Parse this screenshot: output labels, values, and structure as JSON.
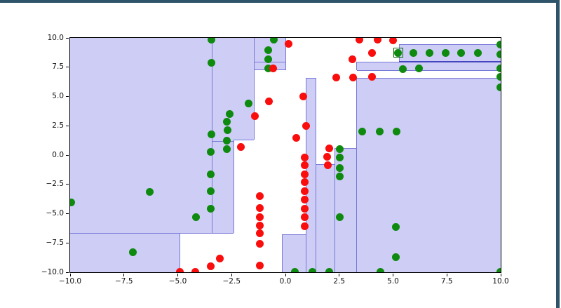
{
  "window": {
    "frame_color": "#2d5469"
  },
  "chart_data": {
    "type": "scatter",
    "title": "",
    "xlabel": "",
    "ylabel": "",
    "xlim": [
      -10,
      10
    ],
    "ylim": [
      -10,
      10
    ],
    "grid": false,
    "legend": null,
    "x_ticks": {
      "values": [
        -10,
        -7.5,
        -5,
        -2.5,
        0,
        2.5,
        5,
        7.5,
        10
      ],
      "labels": [
        "−10.0",
        "−7.5",
        "−5.0",
        "−2.5",
        "0.0",
        "2.5",
        "5.0",
        "7.5",
        "10.0"
      ]
    },
    "y_ticks": {
      "values": [
        10,
        7.5,
        5,
        2.5,
        0,
        -2.5,
        -5,
        -7.5,
        -10
      ],
      "labels": [
        "10.0",
        "7.5",
        "5.0",
        "2.5",
        "0.0",
        "−2.5",
        "−5.0",
        "−7.5",
        "−10.0"
      ]
    },
    "colors": {
      "region_fill": "#cdcdf5",
      "region_edge": "#7878d8",
      "region_edge_strong": "#4545c0",
      "green": "#0e8a0e",
      "red": "#f90d0d",
      "highlight_box": "#066606",
      "spine": "#000000"
    },
    "regions": [
      {
        "x1": -10,
        "x2": -2.4,
        "y1": 10,
        "y2": -6.66
      },
      {
        "x1": -2.4,
        "x2": -1.45,
        "y1": 10,
        "y2": 1.31
      },
      {
        "x1": -10,
        "x2": -4.9,
        "y1": -6.66,
        "y2": -10
      },
      {
        "x1": -1.45,
        "x2": 0.03,
        "y1": 10,
        "y2": 7.27
      },
      {
        "x1": 0.97,
        "x2": 1.42,
        "y1": 6.56,
        "y2": -10
      },
      {
        "x1": 1.42,
        "x2": 2.31,
        "y1": -0.83,
        "y2": -10
      },
      {
        "x1": 2.31,
        "x2": 3.29,
        "y1": 0.59,
        "y2": -10
      },
      {
        "x1": -0.15,
        "x2": 0.97,
        "y1": -6.82,
        "y2": -10
      },
      {
        "x1": 5.28,
        "x2": 10,
        "y1": 9.45,
        "y2": 7.98
      },
      {
        "x1": 3.32,
        "x2": 10,
        "y1": 7.95,
        "y2": 7.22
      },
      {
        "x1": 3.29,
        "x2": 10,
        "y1": 6.56,
        "y2": -10
      }
    ],
    "boundary_lines": {
      "v": [
        {
          "x": -3.4,
          "y1": 10,
          "y2": -6.66
        },
        {
          "x": -1.45,
          "y1": 10,
          "y2": 1.31
        },
        {
          "x": -2.4,
          "y1": 1.31,
          "y2": -6.66
        },
        {
          "x": 0.03,
          "y1": 10,
          "y2": 7.27
        },
        {
          "x": 0.97,
          "y1": 6.56,
          "y2": -10
        },
        {
          "x": 1.42,
          "y1": 6.56,
          "y2": -10
        },
        {
          "x": 2.31,
          "y1": 0.59,
          "y2": -10
        },
        {
          "x": 3.29,
          "y1": 6.56,
          "y2": -10
        },
        {
          "x": -0.15,
          "y1": -6.82,
          "y2": -10
        },
        {
          "x": -4.9,
          "y1": -6.66,
          "y2": -10
        },
        {
          "x": 5.28,
          "y1": 9.45,
          "y2": 7.98
        },
        {
          "x": 3.32,
          "y1": 7.95,
          "y2": 7.22
        }
      ],
      "h": [
        {
          "y": 1.31,
          "x1": -2.4,
          "x2": -1.45
        },
        {
          "y": 1.17,
          "x1": -3.4,
          "x2": -2.4
        },
        {
          "y": -6.66,
          "x1": -10,
          "x2": -2.4
        },
        {
          "y": -6.82,
          "x1": -0.15,
          "x2": 0.97
        },
        {
          "y": 7.27,
          "x1": -1.45,
          "x2": 0.03
        },
        {
          "y": 7.95,
          "x1": -1.45,
          "x2": 0.03
        },
        {
          "y": 9.45,
          "x1": 5.28,
          "x2": 10
        },
        {
          "y": 7.95,
          "x1": 3.32,
          "x2": 10
        },
        {
          "y": 7.22,
          "x1": 3.32,
          "x2": 10
        },
        {
          "y": 6.56,
          "x1": 0.97,
          "x2": 1.42
        },
        {
          "y": 6.56,
          "x1": 3.29,
          "x2": 10
        },
        {
          "y": 0.59,
          "x1": 2.31,
          "x2": 3.29
        },
        {
          "y": -0.83,
          "x1": 1.42,
          "x2": 2.31
        },
        {
          "y": 7.98,
          "x1": 5.28,
          "x2": 10,
          "strong": true
        }
      ]
    },
    "series": [
      {
        "name": "green",
        "color": "#0e8a0e",
        "points": [
          [
            -3.44,
            9.84
          ],
          [
            -3.44,
            7.85
          ],
          [
            -3.44,
            1.77
          ],
          [
            -3.47,
            0.27
          ],
          [
            -3.47,
            -1.62
          ],
          [
            -3.47,
            -3.11
          ],
          [
            -3.47,
            -4.57
          ],
          [
            -0.54,
            9.84
          ],
          [
            -0.8,
            8.98
          ],
          [
            -0.8,
            8.15
          ],
          [
            -0.8,
            7.41
          ],
          [
            -2.6,
            3.5
          ],
          [
            -2.71,
            2.83
          ],
          [
            -2.7,
            2.13
          ],
          [
            -2.71,
            1.21
          ],
          [
            -2.71,
            0.51
          ],
          [
            -1.7,
            4.4
          ],
          [
            -4.16,
            -5.31
          ],
          [
            -6.3,
            -3.17
          ],
          [
            -9.94,
            -4.07
          ],
          [
            -7.07,
            -8.3
          ],
          [
            2.51,
            0.48
          ],
          [
            2.51,
            -0.22
          ],
          [
            2.51,
            -1.08
          ],
          [
            2.51,
            -1.82
          ],
          [
            2.51,
            -5.31
          ],
          [
            3.56,
            2.01
          ],
          [
            4.38,
            2.01
          ],
          [
            5.16,
            2.01
          ],
          [
            5.13,
            -6.16
          ],
          [
            5.13,
            -8.7
          ],
          [
            0.44,
            -9.97
          ],
          [
            1.26,
            -9.97
          ],
          [
            2.04,
            -9.97
          ],
          [
            4.41,
            -9.97
          ],
          [
            9.99,
            -9.97
          ],
          [
            5.24,
            8.74
          ],
          [
            5.95,
            8.74
          ],
          [
            6.69,
            8.74
          ],
          [
            7.44,
            8.74
          ],
          [
            8.17,
            8.74
          ],
          [
            8.93,
            8.74
          ],
          [
            5.44,
            7.35
          ],
          [
            6.22,
            7.39
          ],
          [
            9.99,
            9.45
          ],
          [
            9.99,
            8.6
          ],
          [
            9.99,
            7.4
          ],
          [
            9.99,
            6.65
          ],
          [
            9.99,
            5.8
          ]
        ]
      },
      {
        "name": "red",
        "color": "#f90d0d",
        "points": [
          [
            0.14,
            9.48
          ],
          [
            3.45,
            9.84
          ],
          [
            4.27,
            9.84
          ],
          [
            5.0,
            9.82
          ],
          [
            4.03,
            8.74
          ],
          [
            3.11,
            8.15
          ],
          [
            -0.58,
            7.41
          ],
          [
            2.35,
            6.61
          ],
          [
            3.15,
            6.61
          ],
          [
            4.03,
            6.69
          ],
          [
            0.83,
            5.0
          ],
          [
            -0.76,
            4.6
          ],
          [
            -1.43,
            3.3
          ],
          [
            0.96,
            2.47
          ],
          [
            0.5,
            1.45
          ],
          [
            -2.06,
            0.67
          ],
          [
            2.02,
            0.57
          ],
          [
            1.94,
            -0.16
          ],
          [
            1.96,
            -0.88
          ],
          [
            0.88,
            -0.22
          ],
          [
            0.88,
            -0.88
          ],
          [
            0.88,
            -1.62
          ],
          [
            0.88,
            -2.32
          ],
          [
            0.88,
            -3.08
          ],
          [
            0.88,
            -3.81
          ],
          [
            0.88,
            -4.57
          ],
          [
            0.88,
            -5.31
          ],
          [
            0.88,
            -6.07
          ],
          [
            -1.18,
            -3.52
          ],
          [
            -1.18,
            -4.5
          ],
          [
            -1.18,
            -5.31
          ],
          [
            -1.18,
            -6.01
          ],
          [
            -1.18,
            -6.7
          ],
          [
            -1.18,
            -7.6
          ],
          [
            -1.18,
            -9.43
          ],
          [
            -3.06,
            -8.83
          ],
          [
            -4.9,
            -9.97
          ],
          [
            -4.2,
            -9.97
          ],
          [
            -3.46,
            -9.49
          ]
        ]
      }
    ],
    "highlight": {
      "x": 5.24,
      "y": 8.74,
      "color": "#066606",
      "shape": "square-outline"
    },
    "marker_diameter_px": 11
  }
}
